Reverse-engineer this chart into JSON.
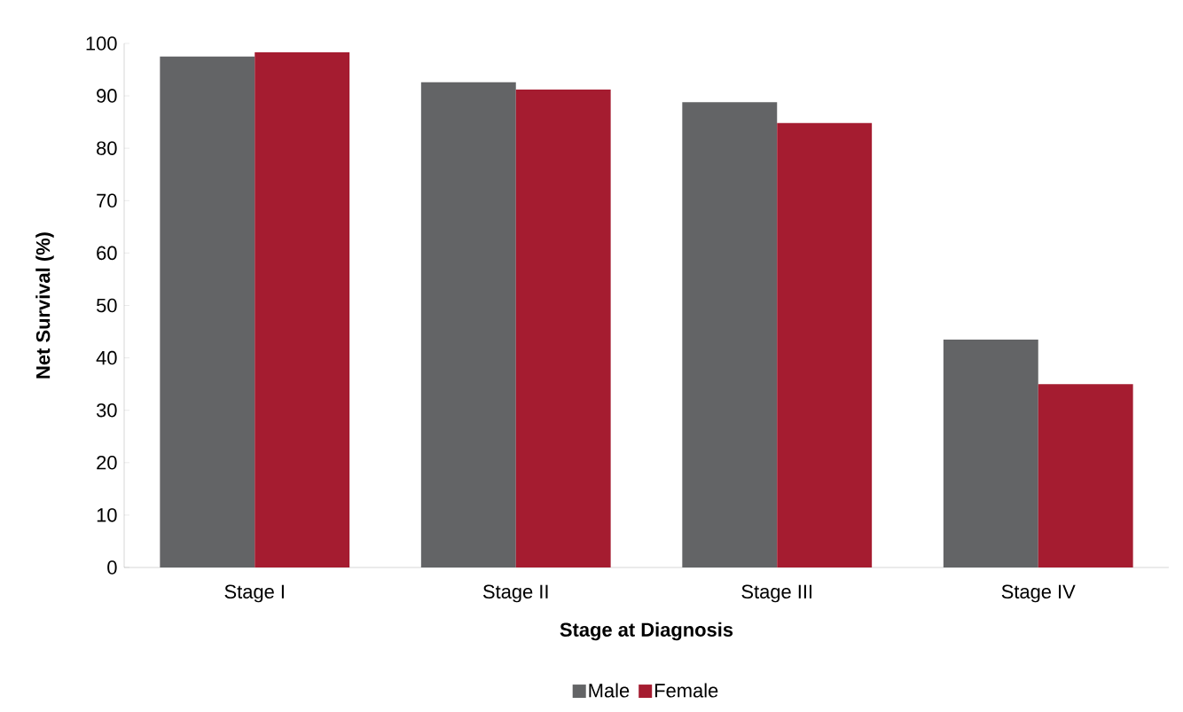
{
  "chart_data": {
    "type": "bar",
    "xlabel": "Stage at Diagnosis",
    "ylabel": "Net Survival (%)",
    "categories": [
      "Stage I",
      "Stage II",
      "Stage III",
      "Stage IV"
    ],
    "series": [
      {
        "name": "Male",
        "color": "#636466",
        "values": [
          97.5,
          92.6,
          88.8,
          43.5
        ]
      },
      {
        "name": "Female",
        "color": "#a51c30",
        "values": [
          98.3,
          91.2,
          84.8,
          35.0
        ]
      }
    ],
    "ylim": [
      0,
      100
    ],
    "yticks": [
      0,
      10,
      20,
      30,
      40,
      50,
      60,
      70,
      80,
      90,
      100
    ],
    "grid": false,
    "legend": "bottom"
  }
}
